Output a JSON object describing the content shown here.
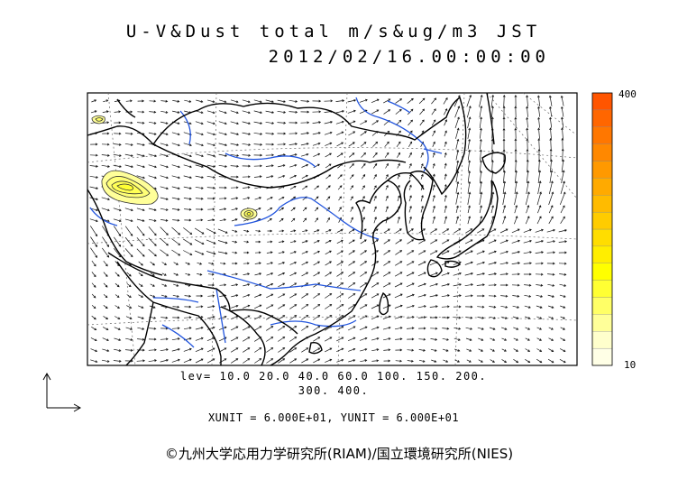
{
  "title": {
    "line1": "U-V&Dust total m/s&ug/m3 JST",
    "line2": "2012/02/16.00:00:00"
  },
  "colorbar": {
    "max_label": "400",
    "min_label": "10",
    "colors": [
      "#ffffe6",
      "#ffffcc",
      "#ffff99",
      "#ffff66",
      "#ffff33",
      "#ffff00",
      "#ffee00",
      "#ffdd00",
      "#ffcc00",
      "#ffbb00",
      "#ffaa00",
      "#ff9900",
      "#ff8800",
      "#ff7700",
      "#ff6600",
      "#ff5500"
    ]
  },
  "levels": {
    "line1": "lev= 10.0 20.0 40.0 60.0 100. 150. 200.",
    "line2": "300. 400."
  },
  "units": "XUNIT = 6.000E+01, YUNIT = 6.000E+01",
  "copyright": "©九州大学応用力学研究所(RIAM)/国立環境研究所(NIES)",
  "colors": {
    "coastline": "#000000",
    "rivers": "#2255dd",
    "dust_fill": "#ffff99",
    "grid": "#555555"
  }
}
